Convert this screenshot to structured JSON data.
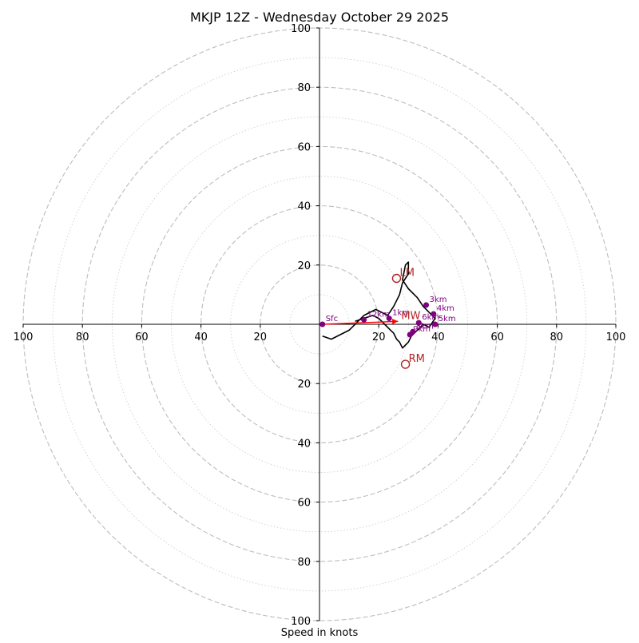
{
  "chart_data": {
    "type": "hodograph",
    "title": "MKJP 12Z - Wednesday October 29 2025",
    "xlabel": "Speed in knots",
    "units": "knots",
    "max_speed": 100,
    "major_rings": [
      20,
      40,
      60,
      80,
      100
    ],
    "minor_rings": [
      10,
      30,
      50,
      70,
      90
    ],
    "tick_labels": [
      "100",
      "80",
      "60",
      "40",
      "20",
      "20",
      "40",
      "60",
      "80",
      "100"
    ],
    "y_tick_labels": [
      "100",
      "80",
      "60",
      "40",
      "20",
      "20",
      "40",
      "60",
      "80",
      "100"
    ],
    "wind_trace": {
      "name": "wind profile",
      "color": "#000000",
      "u": [
        1,
        4,
        10,
        15,
        19,
        23,
        25,
        26,
        27,
        28,
        30,
        30,
        29,
        28,
        30,
        33,
        35,
        39,
        37,
        35,
        33,
        31,
        30,
        29,
        28,
        27,
        26,
        25,
        24,
        22,
        20,
        18,
        12
      ],
      "v": [
        -4,
        -5,
        -2,
        3,
        5,
        3,
        6,
        8,
        10,
        14,
        17,
        21,
        20,
        15,
        12,
        9,
        6,
        2,
        -1,
        0,
        -2,
        -4,
        -6,
        -7,
        -8,
        -6,
        -5,
        -3,
        -2,
        0,
        2,
        3,
        1
      ]
    },
    "height_markers": [
      {
        "label": "Sfc",
        "u": 1,
        "v": 0
      },
      {
        "label": "1km",
        "u": 23.5,
        "v": 2
      },
      {
        "label": "3km",
        "u": 36,
        "v": 6.5
      },
      {
        "label": "4km",
        "u": 38.5,
        "v": 3.5
      },
      {
        "label": "5km",
        "u": 39,
        "v": 0
      },
      {
        "label": "6km",
        "u": 33.5,
        "v": 0.5
      },
      {
        "label": "8km",
        "u": 31.5,
        "v": -2.5
      },
      {
        "label": "9km",
        "u": 30.5,
        "v": -3.5
      },
      {
        "label": "12km",
        "u": 15,
        "v": 1.5
      }
    ],
    "storm_motion": [
      {
        "label": "LM",
        "u": 26,
        "v": 15.5,
        "color": "#b22222"
      },
      {
        "label": "RM",
        "u": 29,
        "v": -13.5,
        "color": "#b22222"
      },
      {
        "label": "MW",
        "u": 26.5,
        "v": 1,
        "color": "#b22222"
      }
    ],
    "shear_vector": {
      "u1": 1,
      "v1": 0,
      "u2": 26.5,
      "v2": 1,
      "color": "#ff0000"
    }
  }
}
